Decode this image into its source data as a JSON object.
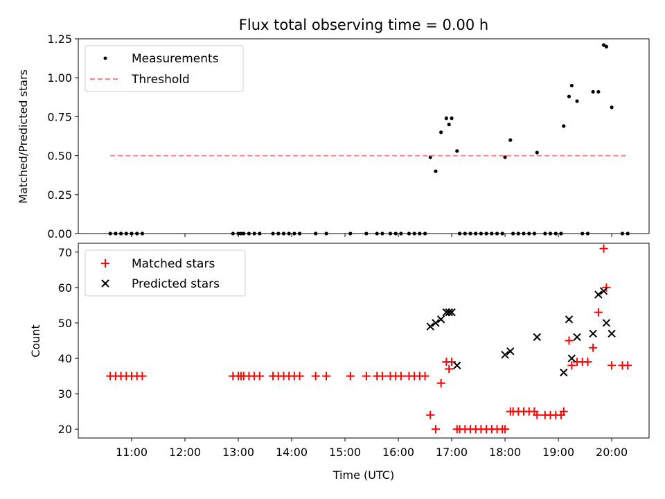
{
  "chart_data": {
    "title": "Flux total observing time = 0.00 h",
    "xlabel": "Time (UTC)",
    "x_ticks": [
      "11:00",
      "12:00",
      "13:00",
      "14:00",
      "15:00",
      "16:00",
      "17:00",
      "18:00",
      "19:00",
      "20:00"
    ],
    "colors": {
      "measurements": "#000000",
      "threshold": "#ff8080",
      "matched": "#ff0000",
      "predicted": "#000000"
    },
    "panels": [
      {
        "type": "scatter",
        "ylabel": "Matched/Predicted stars",
        "ylim": [
          0,
          1.25
        ],
        "y_ticks": [
          "0.00",
          "0.25",
          "0.50",
          "0.75",
          "1.00",
          "1.25"
        ],
        "legend": "top-left",
        "series": [
          {
            "name": "Measurements",
            "kind": "scatter",
            "marker": "dot",
            "points": [
              [
                "10:36",
                0
              ],
              [
                "10:42",
                0
              ],
              [
                "10:48",
                0
              ],
              [
                "10:54",
                0
              ],
              [
                "11:00",
                0
              ],
              [
                "11:06",
                0
              ],
              [
                "11:12",
                0
              ],
              [
                "12:54",
                0
              ],
              [
                "13:00",
                0
              ],
              [
                "13:03",
                0
              ],
              [
                "13:06",
                0
              ],
              [
                "13:12",
                0
              ],
              [
                "13:18",
                0
              ],
              [
                "13:24",
                0
              ],
              [
                "13:39",
                0
              ],
              [
                "13:45",
                0
              ],
              [
                "13:51",
                0
              ],
              [
                "13:57",
                0
              ],
              [
                "14:03",
                0
              ],
              [
                "14:09",
                0
              ],
              [
                "14:27",
                0
              ],
              [
                "14:39",
                0
              ],
              [
                "15:06",
                0
              ],
              [
                "15:24",
                0
              ],
              [
                "15:36",
                0
              ],
              [
                "15:42",
                0
              ],
              [
                "15:51",
                0
              ],
              [
                "15:57",
                0
              ],
              [
                "16:03",
                0
              ],
              [
                "16:12",
                0
              ],
              [
                "16:18",
                0
              ],
              [
                "16:24",
                0
              ],
              [
                "16:30",
                0
              ],
              [
                "16:36",
                0.49
              ],
              [
                "16:42",
                0.4
              ],
              [
                "16:48",
                0.65
              ],
              [
                "16:54",
                0.74
              ],
              [
                "16:57",
                0.7
              ],
              [
                "17:00",
                0.74
              ],
              [
                "17:06",
                0.53
              ],
              [
                "17:09",
                0
              ],
              [
                "17:15",
                0
              ],
              [
                "17:21",
                0
              ],
              [
                "17:27",
                0
              ],
              [
                "17:33",
                0
              ],
              [
                "17:39",
                0
              ],
              [
                "17:45",
                0
              ],
              [
                "17:51",
                0
              ],
              [
                "17:57",
                0
              ],
              [
                "18:00",
                0.49
              ],
              [
                "18:06",
                0.6
              ],
              [
                "18:09",
                0
              ],
              [
                "18:15",
                0
              ],
              [
                "18:21",
                0
              ],
              [
                "18:27",
                0
              ],
              [
                "18:33",
                0
              ],
              [
                "18:36",
                0.52
              ],
              [
                "18:45",
                0
              ],
              [
                "18:51",
                0
              ],
              [
                "18:57",
                0
              ],
              [
                "19:03",
                0
              ],
              [
                "19:06",
                0.69
              ],
              [
                "19:12",
                0.88
              ],
              [
                "19:15",
                0.95
              ],
              [
                "19:21",
                0.85
              ],
              [
                "19:27",
                0
              ],
              [
                "19:33",
                0
              ],
              [
                "19:39",
                0.91
              ],
              [
                "19:45",
                0.91
              ],
              [
                "19:51",
                1.21
              ],
              [
                "19:54",
                1.2
              ],
              [
                "20:00",
                0.81
              ],
              [
                "20:12",
                0
              ],
              [
                "20:18",
                0
              ]
            ]
          },
          {
            "name": "Threshold",
            "kind": "hline",
            "value": 0.5,
            "x_range": [
              "10:36",
              "20:18"
            ]
          }
        ]
      },
      {
        "type": "scatter",
        "ylabel": "Count",
        "ylim": [
          17.5,
          72.5
        ],
        "y_ticks": [
          "20",
          "30",
          "40",
          "50",
          "60",
          "70"
        ],
        "legend": "top-left",
        "series": [
          {
            "name": "Matched stars",
            "kind": "scatter",
            "marker": "plus",
            "points": [
              [
                "10:36",
                35
              ],
              [
                "10:42",
                35
              ],
              [
                "10:48",
                35
              ],
              [
                "10:54",
                35
              ],
              [
                "11:00",
                35
              ],
              [
                "11:06",
                35
              ],
              [
                "11:12",
                35
              ],
              [
                "12:54",
                35
              ],
              [
                "13:00",
                35
              ],
              [
                "13:03",
                35
              ],
              [
                "13:06",
                35
              ],
              [
                "13:12",
                35
              ],
              [
                "13:18",
                35
              ],
              [
                "13:24",
                35
              ],
              [
                "13:39",
                35
              ],
              [
                "13:45",
                35
              ],
              [
                "13:51",
                35
              ],
              [
                "13:57",
                35
              ],
              [
                "14:03",
                35
              ],
              [
                "14:09",
                35
              ],
              [
                "14:27",
                35
              ],
              [
                "14:39",
                35
              ],
              [
                "15:06",
                35
              ],
              [
                "15:24",
                35
              ],
              [
                "15:36",
                35
              ],
              [
                "15:42",
                35
              ],
              [
                "15:51",
                35
              ],
              [
                "15:57",
                35
              ],
              [
                "16:03",
                35
              ],
              [
                "16:12",
                35
              ],
              [
                "16:18",
                35
              ],
              [
                "16:24",
                35
              ],
              [
                "16:30",
                35
              ],
              [
                "16:36",
                24
              ],
              [
                "16:42",
                20
              ],
              [
                "16:48",
                33
              ],
              [
                "16:54",
                39
              ],
              [
                "16:57",
                37
              ],
              [
                "17:00",
                39
              ],
              [
                "17:06",
                20
              ],
              [
                "17:09",
                20
              ],
              [
                "17:15",
                20
              ],
              [
                "17:21",
                20
              ],
              [
                "17:27",
                20
              ],
              [
                "17:33",
                20
              ],
              [
                "17:39",
                20
              ],
              [
                "17:45",
                20
              ],
              [
                "17:51",
                20
              ],
              [
                "17:57",
                20
              ],
              [
                "18:00",
                20
              ],
              [
                "18:06",
                25
              ],
              [
                "18:09",
                25
              ],
              [
                "18:15",
                25
              ],
              [
                "18:21",
                25
              ],
              [
                "18:27",
                25
              ],
              [
                "18:33",
                25
              ],
              [
                "18:36",
                24
              ],
              [
                "18:45",
                24
              ],
              [
                "18:51",
                24
              ],
              [
                "18:57",
                24
              ],
              [
                "19:03",
                24
              ],
              [
                "19:06",
                25
              ],
              [
                "19:12",
                45
              ],
              [
                "19:15",
                38
              ],
              [
                "19:21",
                39
              ],
              [
                "19:27",
                39
              ],
              [
                "19:33",
                39
              ],
              [
                "19:39",
                43
              ],
              [
                "19:45",
                53
              ],
              [
                "19:51",
                71
              ],
              [
                "19:54",
                60
              ],
              [
                "20:00",
                38
              ],
              [
                "20:12",
                38
              ],
              [
                "20:18",
                38
              ]
            ]
          },
          {
            "name": "Predicted stars",
            "kind": "scatter",
            "marker": "x",
            "points": [
              [
                "16:36",
                49
              ],
              [
                "16:42",
                50
              ],
              [
                "16:48",
                51
              ],
              [
                "16:54",
                53
              ],
              [
                "16:57",
                53
              ],
              [
                "17:00",
                53
              ],
              [
                "17:06",
                38
              ],
              [
                "18:00",
                41
              ],
              [
                "18:06",
                42
              ],
              [
                "18:36",
                46
              ],
              [
                "19:06",
                36
              ],
              [
                "19:12",
                51
              ],
              [
                "19:15",
                40
              ],
              [
                "19:21",
                46
              ],
              [
                "19:39",
                47
              ],
              [
                "19:45",
                58
              ],
              [
                "19:51",
                59
              ],
              [
                "19:54",
                50
              ],
              [
                "20:00",
                47
              ]
            ]
          }
        ]
      }
    ]
  }
}
